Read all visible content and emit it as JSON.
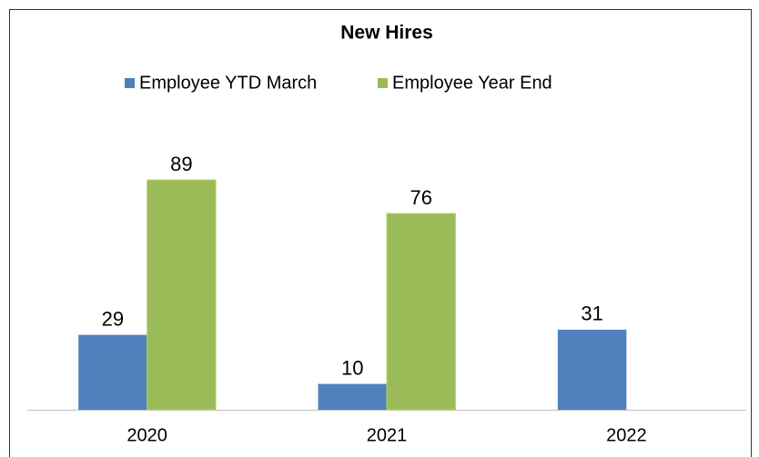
{
  "chart_data": {
    "type": "bar",
    "title": "New Hires",
    "categories": [
      "2020",
      "2021",
      "2022"
    ],
    "series": [
      {
        "name": "Employee YTD March",
        "color": "#4f81bd",
        "values": [
          29,
          10,
          31
        ]
      },
      {
        "name": "Employee Year End",
        "color": "#9bbb59",
        "values": [
          89,
          76,
          null
        ]
      }
    ],
    "legend": "top"
  }
}
